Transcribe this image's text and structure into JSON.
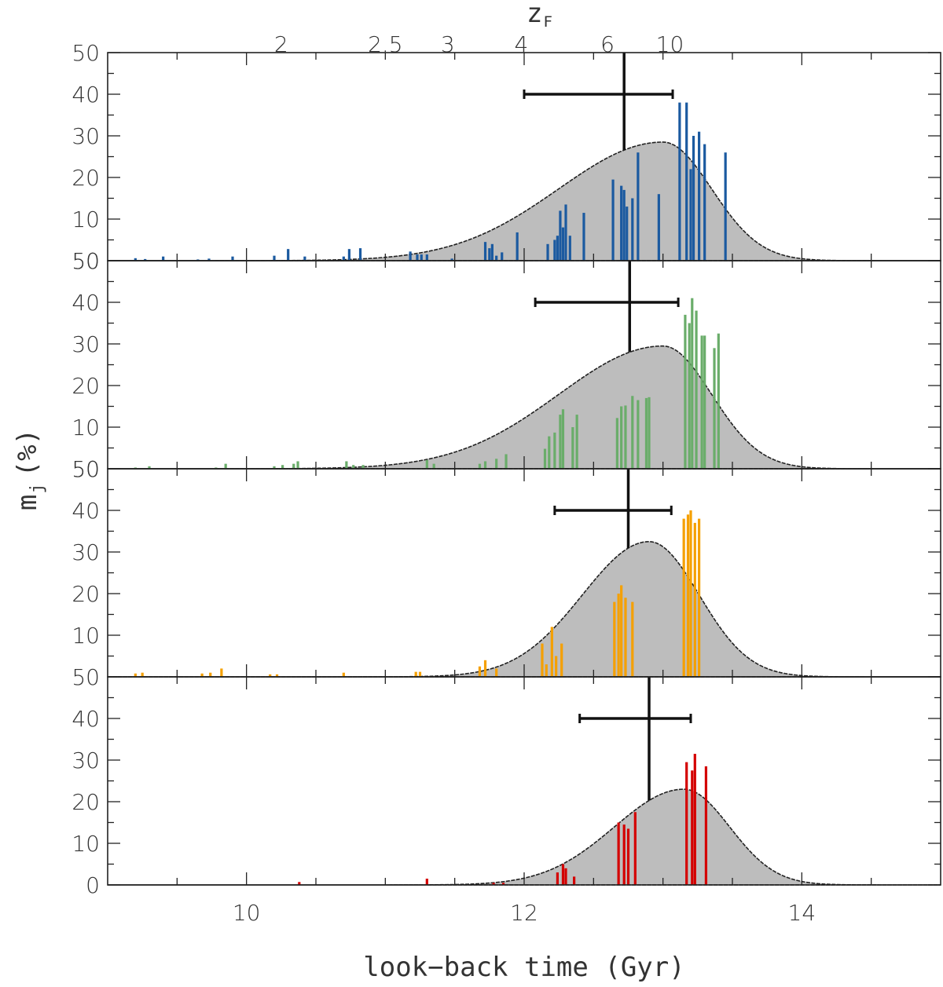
{
  "chart_data": {
    "type": "bar",
    "xlabel": "look−back time (Gyr)",
    "ylabel": "m",
    "ylabel_subscript": "j",
    "ylabel_unit": "(%)",
    "top_axis_label": "z",
    "top_axis_label_subscript": "F",
    "xlim": [
      9.0,
      15.0
    ],
    "x_tick_values": [
      10,
      12,
      14
    ],
    "x_tick_labels": [
      "10",
      "12",
      "14"
    ],
    "top_ticks": [
      {
        "label": "2",
        "t": 10.25
      },
      {
        "label": "2.5",
        "t": 11.0
      },
      {
        "label": "3",
        "t": 11.45
      },
      {
        "label": "4",
        "t": 11.98
      },
      {
        "label": "6",
        "t": 12.6
      },
      {
        "label": "10",
        "t": 13.05
      }
    ],
    "ylim": [
      0,
      50
    ],
    "y_tick_labels": [
      "0",
      "10",
      "20",
      "30",
      "40",
      "50"
    ],
    "panels": [
      {
        "color": "#1b5aa0",
        "mean": 12.72,
        "err_low": 12.0,
        "err_high": 13.07,
        "err_y": 40,
        "envelope": {
          "peak_t": 13.0,
          "peak": 28.5,
          "sigma_left": 0.75,
          "sigma_right": 0.35
        },
        "bars": [
          [
            9.2,
            0.6
          ],
          [
            9.27,
            0.4
          ],
          [
            9.4,
            1.0
          ],
          [
            9.65,
            0.3
          ],
          [
            9.73,
            0.5
          ],
          [
            9.9,
            1.0
          ],
          [
            10.2,
            1.2
          ],
          [
            10.3,
            2.8
          ],
          [
            10.42,
            1.0
          ],
          [
            10.7,
            1.0
          ],
          [
            10.74,
            2.8
          ],
          [
            10.82,
            3.0
          ],
          [
            11.18,
            2.2
          ],
          [
            11.23,
            1.5
          ],
          [
            11.26,
            1.5
          ],
          [
            11.3,
            1.5
          ],
          [
            11.48,
            0.5
          ],
          [
            11.72,
            4.5
          ],
          [
            11.75,
            3.0
          ],
          [
            11.77,
            4.0
          ],
          [
            11.8,
            1.2
          ],
          [
            11.84,
            2.0
          ],
          [
            11.95,
            6.8
          ],
          [
            12.17,
            4.0
          ],
          [
            12.22,
            5.0
          ],
          [
            12.24,
            6.0
          ],
          [
            12.26,
            12.0
          ],
          [
            12.28,
            8.0
          ],
          [
            12.3,
            13.5
          ],
          [
            12.33,
            6.0
          ],
          [
            12.43,
            11.5
          ],
          [
            12.64,
            19.5
          ],
          [
            12.7,
            18.0
          ],
          [
            12.72,
            17.0
          ],
          [
            12.74,
            13.0
          ],
          [
            12.78,
            15.0
          ],
          [
            12.82,
            26.0
          ],
          [
            12.97,
            16.0
          ],
          [
            13.12,
            38.0
          ],
          [
            13.17,
            38.0
          ],
          [
            13.2,
            22.0
          ],
          [
            13.22,
            30.0
          ],
          [
            13.26,
            31.0
          ],
          [
            13.3,
            28.0
          ],
          [
            13.45,
            26.0
          ]
        ]
      },
      {
        "color": "#6aad6a",
        "mean": 12.76,
        "err_low": 12.08,
        "err_high": 13.11,
        "err_y": 40,
        "envelope": {
          "peak_t": 13.0,
          "peak": 29.5,
          "sigma_left": 0.75,
          "sigma_right": 0.35
        },
        "bars": [
          [
            9.2,
            0.3
          ],
          [
            9.3,
            0.6
          ],
          [
            9.78,
            0.3
          ],
          [
            9.85,
            1.2
          ],
          [
            10.2,
            0.6
          ],
          [
            10.26,
            0.9
          ],
          [
            10.34,
            1.2
          ],
          [
            10.37,
            1.8
          ],
          [
            10.72,
            1.8
          ],
          [
            10.77,
            0.9
          ],
          [
            10.84,
            0.9
          ],
          [
            11.3,
            2.1
          ],
          [
            11.35,
            1.2
          ],
          [
            11.68,
            1.2
          ],
          [
            11.72,
            1.8
          ],
          [
            11.8,
            2.4
          ],
          [
            11.87,
            3.5
          ],
          [
            12.15,
            4.8
          ],
          [
            12.18,
            7.8
          ],
          [
            12.22,
            8.7
          ],
          [
            12.26,
            13.0
          ],
          [
            12.28,
            14.3
          ],
          [
            12.35,
            10.0
          ],
          [
            12.38,
            13.0
          ],
          [
            12.67,
            12.2
          ],
          [
            12.7,
            15.0
          ],
          [
            12.73,
            15.2
          ],
          [
            12.78,
            17.5
          ],
          [
            12.82,
            16.5
          ],
          [
            12.88,
            17.0
          ],
          [
            12.9,
            17.2
          ],
          [
            13.16,
            37.0
          ],
          [
            13.19,
            35.0
          ],
          [
            13.21,
            41.0
          ],
          [
            13.24,
            38.0
          ],
          [
            13.28,
            32.0
          ],
          [
            13.3,
            32.0
          ],
          [
            13.37,
            29.0
          ],
          [
            13.4,
            32.5
          ]
        ]
      },
      {
        "color": "#f5a000",
        "mean": 12.75,
        "err_low": 12.22,
        "err_high": 13.06,
        "err_y": 40,
        "envelope": {
          "peak_t": 12.9,
          "peak": 32.5,
          "sigma_left": 0.48,
          "sigma_right": 0.36
        },
        "bars": [
          [
            9.2,
            0.8
          ],
          [
            9.25,
            1.0
          ],
          [
            9.68,
            0.8
          ],
          [
            9.74,
            1.0
          ],
          [
            9.82,
            2.0
          ],
          [
            10.17,
            0.6
          ],
          [
            10.22,
            0.6
          ],
          [
            10.7,
            1.0
          ],
          [
            11.22,
            1.2
          ],
          [
            11.25,
            1.2
          ],
          [
            11.68,
            2.5
          ],
          [
            11.72,
            4.0
          ],
          [
            11.8,
            2.0
          ],
          [
            12.13,
            8.0
          ],
          [
            12.16,
            3.0
          ],
          [
            12.2,
            12.0
          ],
          [
            12.23,
            5.0
          ],
          [
            12.27,
            8.0
          ],
          [
            12.65,
            18.0
          ],
          [
            12.68,
            20.0
          ],
          [
            12.7,
            22.0
          ],
          [
            12.73,
            19.0
          ],
          [
            12.78,
            18.0
          ],
          [
            13.15,
            38.0
          ],
          [
            13.18,
            39.0
          ],
          [
            13.2,
            40.0
          ],
          [
            13.23,
            37.0
          ],
          [
            13.26,
            38.0
          ]
        ]
      },
      {
        "color": "#d40000",
        "mean": 12.9,
        "err_low": 12.4,
        "err_high": 13.2,
        "err_y": 40,
        "envelope": {
          "peak_t": 13.15,
          "peak": 23.0,
          "sigma_left": 0.5,
          "sigma_right": 0.33
        },
        "bars": [
          [
            10.38,
            0.7
          ],
          [
            11.3,
            1.5
          ],
          [
            11.78,
            0.5
          ],
          [
            11.85,
            0.5
          ],
          [
            12.24,
            3.0
          ],
          [
            12.28,
            5.0
          ],
          [
            12.3,
            4.0
          ],
          [
            12.36,
            2.0
          ],
          [
            12.68,
            15.0
          ],
          [
            12.72,
            14.5
          ],
          [
            12.75,
            13.5
          ],
          [
            12.8,
            17.5
          ],
          [
            13.17,
            29.5
          ],
          [
            13.21,
            27.5
          ],
          [
            13.23,
            31.5
          ],
          [
            13.31,
            28.5
          ]
        ]
      }
    ]
  }
}
